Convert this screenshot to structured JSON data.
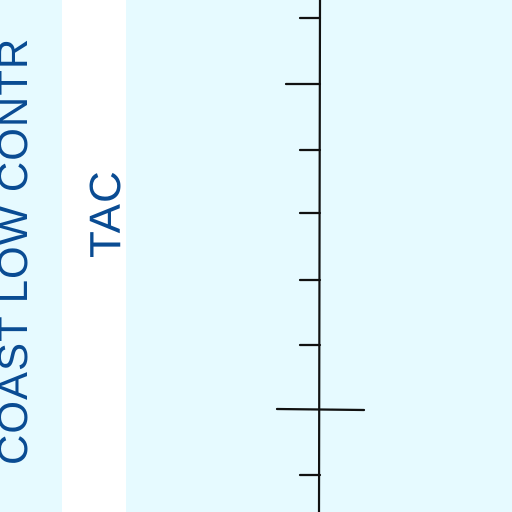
{
  "map": {
    "airway_label_outer": "COAST LOW CONTR",
    "airway_label_inner": "TAC"
  },
  "colors": {
    "water": "#e6faff",
    "land_band": "#ffffff",
    "label_blue": "#0a4c93",
    "tick_black": "#111111"
  }
}
